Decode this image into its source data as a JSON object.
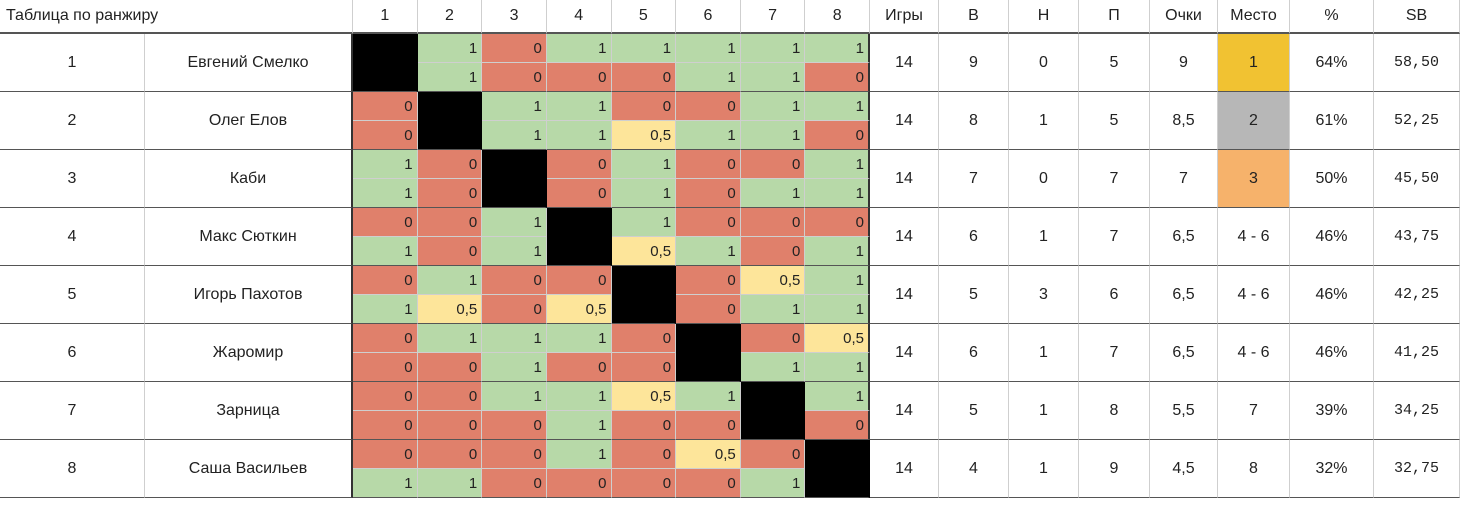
{
  "title": "Таблица по ранжиру",
  "header": {
    "opponents": [
      "1",
      "2",
      "3",
      "4",
      "5",
      "6",
      "7",
      "8"
    ],
    "games": "Игры",
    "wins": "В",
    "draws": "Н",
    "losses": "П",
    "points": "Очки",
    "place": "Место",
    "percent": "%",
    "sb": "SB"
  },
  "colors": {
    "win": "#b7d9a8",
    "loss": "#e0806b",
    "draw": "#fde59a",
    "gold": "#f1c232",
    "silver": "#b7b7b7",
    "bronze": "#f6b26b"
  },
  "rows": [
    {
      "rank": "1",
      "name": "Евгений Смелко",
      "games": "14",
      "wins": "9",
      "draws": "0",
      "losses": "5",
      "points": "9",
      "place": "1",
      "place_color": "gold",
      "percent": "64%",
      "sb": "58,50",
      "results": [
        null,
        [
          "1",
          "1"
        ],
        [
          "0",
          "0"
        ],
        [
          "1",
          "0"
        ],
        [
          "1",
          "0"
        ],
        [
          "1",
          "1"
        ],
        [
          "1",
          "1"
        ],
        [
          "1",
          "0"
        ]
      ]
    },
    {
      "rank": "2",
      "name": "Олег Елов",
      "games": "14",
      "wins": "8",
      "draws": "1",
      "losses": "5",
      "points": "8,5",
      "place": "2",
      "place_color": "silver",
      "percent": "61%",
      "sb": "52,25",
      "results": [
        [
          "0",
          "0"
        ],
        null,
        [
          "1",
          "1"
        ],
        [
          "1",
          "1"
        ],
        [
          "0",
          "0,5"
        ],
        [
          "0",
          "1"
        ],
        [
          "1",
          "1"
        ],
        [
          "1",
          "0"
        ]
      ]
    },
    {
      "rank": "3",
      "name": "Каби",
      "games": "14",
      "wins": "7",
      "draws": "0",
      "losses": "7",
      "points": "7",
      "place": "3",
      "place_color": "bronze",
      "percent": "50%",
      "sb": "45,50",
      "results": [
        [
          "1",
          "1"
        ],
        [
          "0",
          "0"
        ],
        null,
        [
          "0",
          "0"
        ],
        [
          "1",
          "1"
        ],
        [
          "0",
          "0"
        ],
        [
          "0",
          "1"
        ],
        [
          "1",
          "1"
        ]
      ]
    },
    {
      "rank": "4",
      "name": "Макс Сюткин",
      "games": "14",
      "wins": "6",
      "draws": "1",
      "losses": "7",
      "points": "6,5",
      "place": "4 - 6",
      "place_color": "",
      "percent": "46%",
      "sb": "43,75",
      "results": [
        [
          "0",
          "1"
        ],
        [
          "0",
          "0"
        ],
        [
          "1",
          "1"
        ],
        null,
        [
          "1",
          "0,5"
        ],
        [
          "0",
          "1"
        ],
        [
          "0",
          "0"
        ],
        [
          "0",
          "1"
        ]
      ]
    },
    {
      "rank": "5",
      "name": "Игорь Пахотов",
      "games": "14",
      "wins": "5",
      "draws": "3",
      "losses": "6",
      "points": "6,5",
      "place": "4 - 6",
      "place_color": "",
      "percent": "46%",
      "sb": "42,25",
      "results": [
        [
          "0",
          "1"
        ],
        [
          "1",
          "0,5"
        ],
        [
          "0",
          "0"
        ],
        [
          "0",
          "0,5"
        ],
        null,
        [
          "0",
          "0"
        ],
        [
          "0,5",
          "1"
        ],
        [
          "1",
          "1"
        ]
      ]
    },
    {
      "rank": "6",
      "name": "Жаромир",
      "games": "14",
      "wins": "6",
      "draws": "1",
      "losses": "7",
      "points": "6,5",
      "place": "4 - 6",
      "place_color": "",
      "percent": "46%",
      "sb": "41,25",
      "results": [
        [
          "0",
          "0"
        ],
        [
          "1",
          "0"
        ],
        [
          "1",
          "1"
        ],
        [
          "1",
          "0"
        ],
        [
          "0",
          "0"
        ],
        null,
        [
          "0",
          "1"
        ],
        [
          "0,5",
          "1"
        ]
      ]
    },
    {
      "rank": "7",
      "name": "Зарница",
      "games": "14",
      "wins": "5",
      "draws": "1",
      "losses": "8",
      "points": "5,5",
      "place": "7",
      "place_color": "",
      "percent": "39%",
      "sb": "34,25",
      "results": [
        [
          "0",
          "0"
        ],
        [
          "0",
          "0"
        ],
        [
          "1",
          "0"
        ],
        [
          "1",
          "1"
        ],
        [
          "0,5",
          "0"
        ],
        [
          "1",
          "0"
        ],
        null,
        [
          "1",
          "0"
        ]
      ]
    },
    {
      "rank": "8",
      "name": "Саша Васильев",
      "games": "14",
      "wins": "4",
      "draws": "1",
      "losses": "9",
      "points": "4,5",
      "place": "8",
      "place_color": "",
      "percent": "32%",
      "sb": "32,75",
      "results": [
        [
          "0",
          "1"
        ],
        [
          "0",
          "1"
        ],
        [
          "0",
          "0"
        ],
        [
          "1",
          "0"
        ],
        [
          "0",
          "0"
        ],
        [
          "0,5",
          "0"
        ],
        [
          "0",
          "1"
        ],
        null
      ]
    }
  ]
}
